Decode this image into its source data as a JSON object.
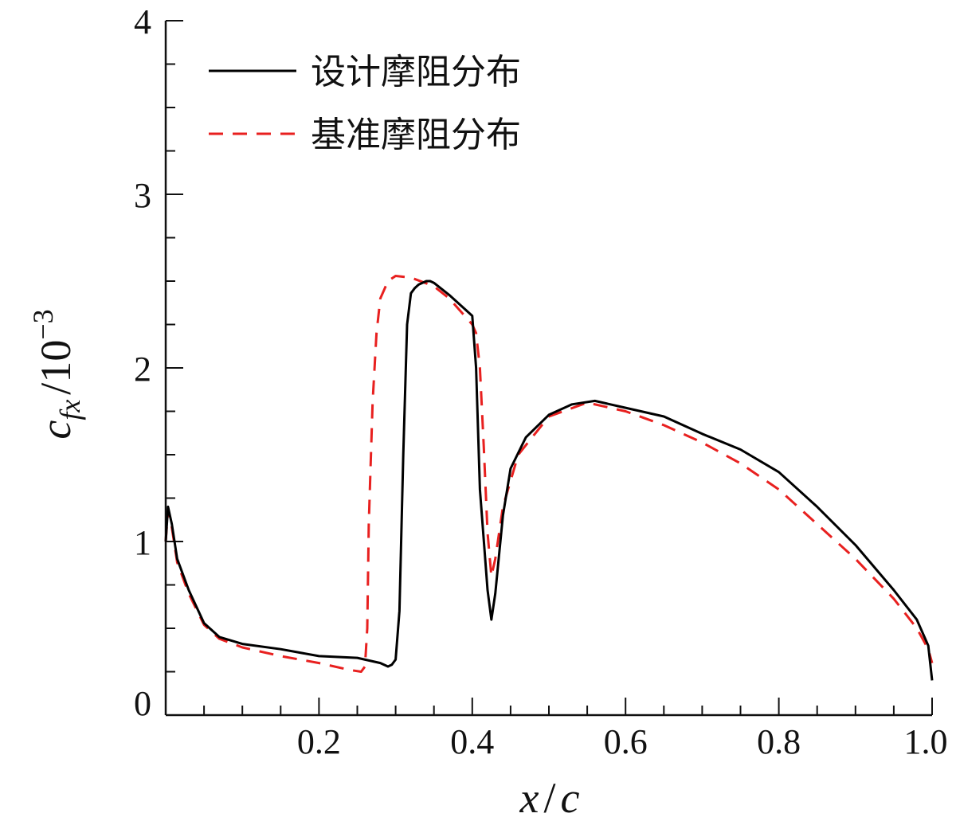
{
  "chart_data": {
    "type": "line",
    "xlabel": "x/c",
    "ylabel": "c_fx/10^-3",
    "xlim": [
      0.0,
      1.0
    ],
    "ylim": [
      0,
      4
    ],
    "x_ticks_major": [
      "0.2",
      "0.4",
      "0.6",
      "0.8",
      "1.0"
    ],
    "x_tick_values": [
      0.2,
      0.4,
      0.6,
      0.8,
      1.0
    ],
    "y_ticks_major": [
      "0",
      "1",
      "2",
      "3",
      "4"
    ],
    "y_tick_values": [
      0,
      1,
      2,
      3,
      4
    ],
    "grid": false,
    "legend_position": "top-left",
    "series": [
      {
        "name": "设计摩阻分布",
        "color": "#000000",
        "dash": "solid",
        "x": [
          0.0,
          0.003,
          0.008,
          0.015,
          0.03,
          0.05,
          0.07,
          0.1,
          0.15,
          0.2,
          0.25,
          0.28,
          0.29,
          0.295,
          0.3,
          0.305,
          0.31,
          0.315,
          0.32,
          0.325,
          0.33,
          0.34,
          0.345,
          0.35,
          0.37,
          0.39,
          0.4,
          0.405,
          0.41,
          0.42,
          0.425,
          0.43,
          0.44,
          0.45,
          0.47,
          0.5,
          0.53,
          0.56,
          0.6,
          0.65,
          0.7,
          0.75,
          0.8,
          0.85,
          0.9,
          0.95,
          0.98,
          0.99,
          0.995,
          1.0
        ],
        "y": [
          1.0,
          1.2,
          1.1,
          0.9,
          0.72,
          0.53,
          0.45,
          0.41,
          0.38,
          0.34,
          0.33,
          0.3,
          0.28,
          0.29,
          0.32,
          0.6,
          1.5,
          2.25,
          2.43,
          2.46,
          2.48,
          2.5,
          2.5,
          2.49,
          2.42,
          2.34,
          2.3,
          2.0,
          1.3,
          0.72,
          0.55,
          0.7,
          1.15,
          1.42,
          1.6,
          1.73,
          1.79,
          1.81,
          1.77,
          1.72,
          1.62,
          1.53,
          1.4,
          1.2,
          0.98,
          0.72,
          0.55,
          0.45,
          0.4,
          0.2
        ]
      },
      {
        "name": "基准摩阻分布",
        "color": "#e8201f",
        "dash": "dashed",
        "x": [
          0.0,
          0.003,
          0.008,
          0.015,
          0.03,
          0.05,
          0.07,
          0.1,
          0.15,
          0.2,
          0.24,
          0.255,
          0.26,
          0.263,
          0.265,
          0.27,
          0.275,
          0.28,
          0.29,
          0.3,
          0.32,
          0.35,
          0.37,
          0.39,
          0.4,
          0.405,
          0.41,
          0.415,
          0.42,
          0.425,
          0.43,
          0.44,
          0.46,
          0.5,
          0.55,
          0.6,
          0.65,
          0.7,
          0.75,
          0.8,
          0.85,
          0.9,
          0.95,
          0.98,
          0.99,
          0.995,
          1.0
        ],
        "y": [
          1.0,
          1.18,
          1.08,
          0.88,
          0.7,
          0.52,
          0.44,
          0.39,
          0.34,
          0.3,
          0.26,
          0.25,
          0.28,
          0.5,
          1.1,
          1.8,
          2.2,
          2.4,
          2.5,
          2.53,
          2.52,
          2.47,
          2.4,
          2.3,
          2.25,
          2.2,
          2.0,
          1.55,
          1.05,
          0.8,
          0.9,
          1.2,
          1.5,
          1.72,
          1.8,
          1.75,
          1.67,
          1.57,
          1.45,
          1.3,
          1.1,
          0.9,
          0.67,
          0.5,
          0.42,
          0.38,
          0.3
        ]
      }
    ]
  }
}
